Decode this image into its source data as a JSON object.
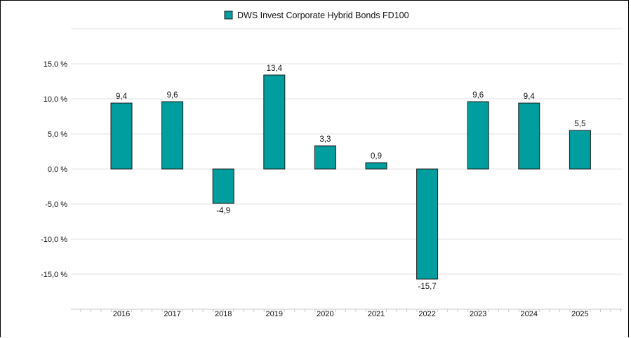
{
  "colors": {
    "bar_fill": "#009e9e",
    "bar_stroke": "#1a1a1a",
    "grid": "#e3e3e3",
    "axis": "#c8c8c8",
    "text": "#111111"
  },
  "legend": {
    "label": "DWS Invest Corporate Hybrid Bonds FD100",
    "position": "top-center"
  },
  "chart_data": {
    "type": "bar",
    "title": "",
    "xlabel": "",
    "ylabel": "",
    "categories": [
      "2016",
      "2017",
      "2018",
      "2019",
      "2020",
      "2021",
      "2022",
      "2023",
      "2024",
      "2025"
    ],
    "series": [
      {
        "name": "DWS Invest Corporate Hybrid Bonds FD100",
        "values": [
          9.4,
          9.6,
          -4.9,
          13.4,
          3.3,
          0.9,
          -15.7,
          9.6,
          9.4,
          5.5
        ],
        "value_labels": [
          "9,4",
          "9,6",
          "-4,9",
          "13,4",
          "3,3",
          "0,9",
          "-15,7",
          "9,6",
          "9,4",
          "5,5"
        ]
      }
    ],
    "ylim": [
      -20,
      20
    ],
    "y_ticks": [
      15,
      10,
      5,
      0,
      -5,
      -10,
      -15
    ],
    "y_tick_labels": [
      "15,0 %",
      "10,0 %",
      "5,0 %",
      "0,0 %",
      "-5,0 %",
      "-10,0 %",
      "-15,0 %"
    ],
    "grid": true,
    "legend_position": "top-center"
  }
}
